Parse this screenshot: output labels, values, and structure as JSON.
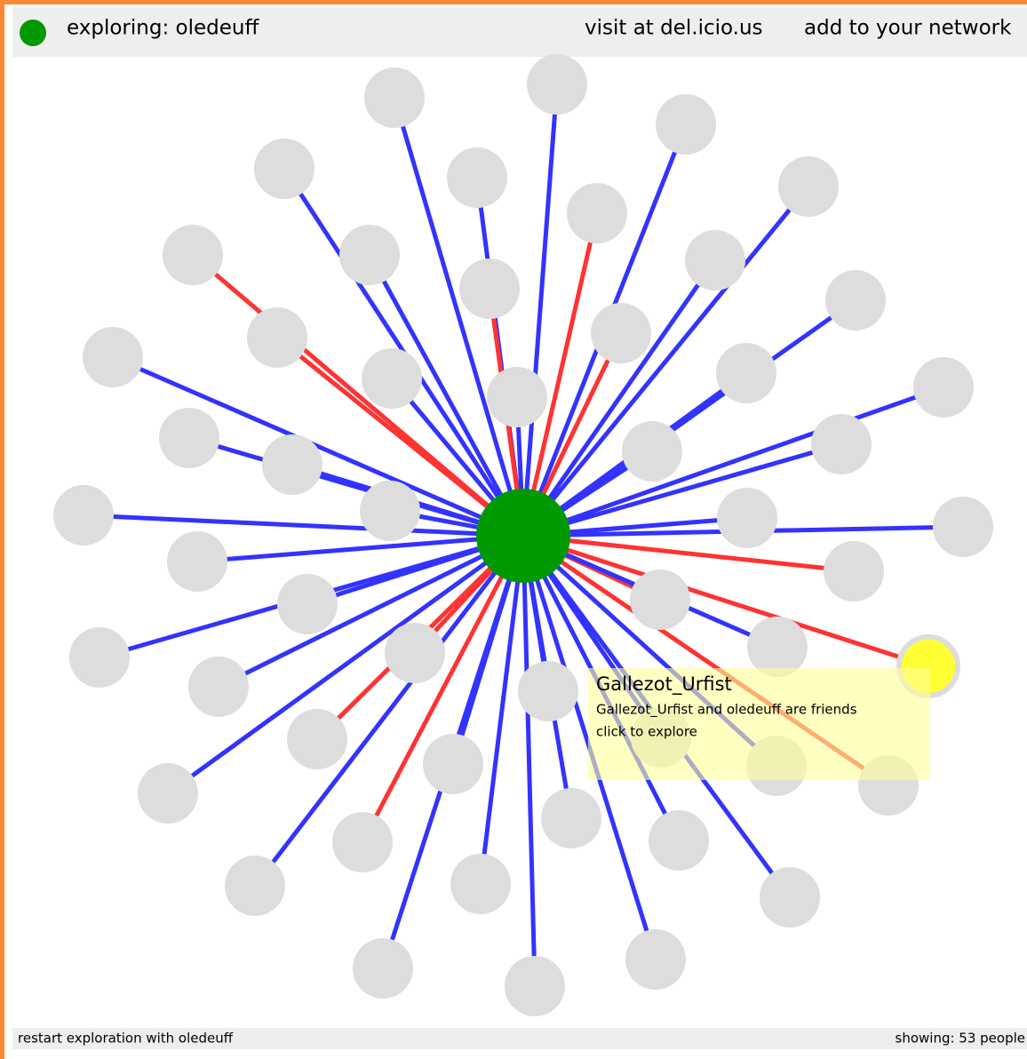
{
  "header": {
    "title": "exploring: oledeuff",
    "links": [
      "visit at del.icio.us",
      "add to your network"
    ]
  },
  "tooltip": {
    "title": "Gallezot_Urfist",
    "lines": [
      "Gallezot_Urfist and oledeuff are friends",
      "click to explore"
    ]
  },
  "footer": {
    "left": "restart exploration with oledeuff",
    "right": "showing: 53 people"
  }
}
